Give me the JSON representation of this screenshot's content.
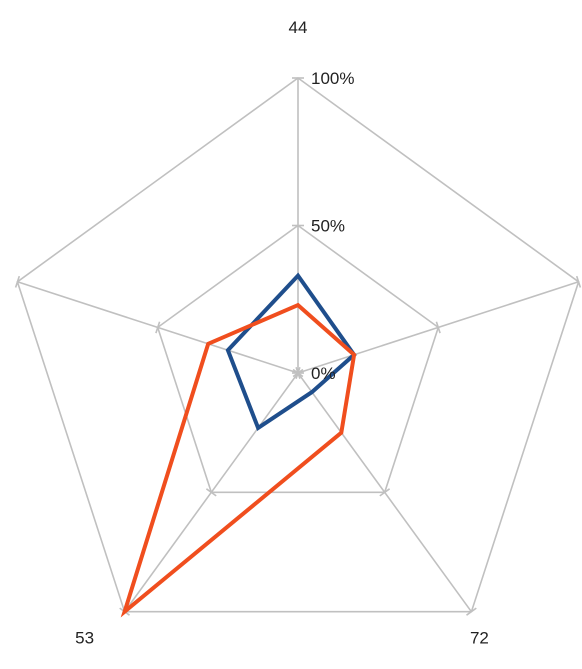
{
  "chart_data": {
    "type": "radar",
    "title": "",
    "categories": [
      "44",
      "",
      "72",
      "53",
      ""
    ],
    "rlim": [
      0,
      100
    ],
    "r_ticks": [
      0,
      50,
      100
    ],
    "r_tick_labels": [
      "0%",
      "50%",
      "100%"
    ],
    "grid": true,
    "legend": "none",
    "series": [
      {
        "color": "#1f4e8c",
        "values": [
          33,
          20,
          8,
          23,
          25
        ]
      },
      {
        "color": "#f04e1e",
        "values": [
          23,
          20,
          25,
          100,
          32
        ]
      }
    ],
    "grid_color": "#c0c0c0"
  }
}
